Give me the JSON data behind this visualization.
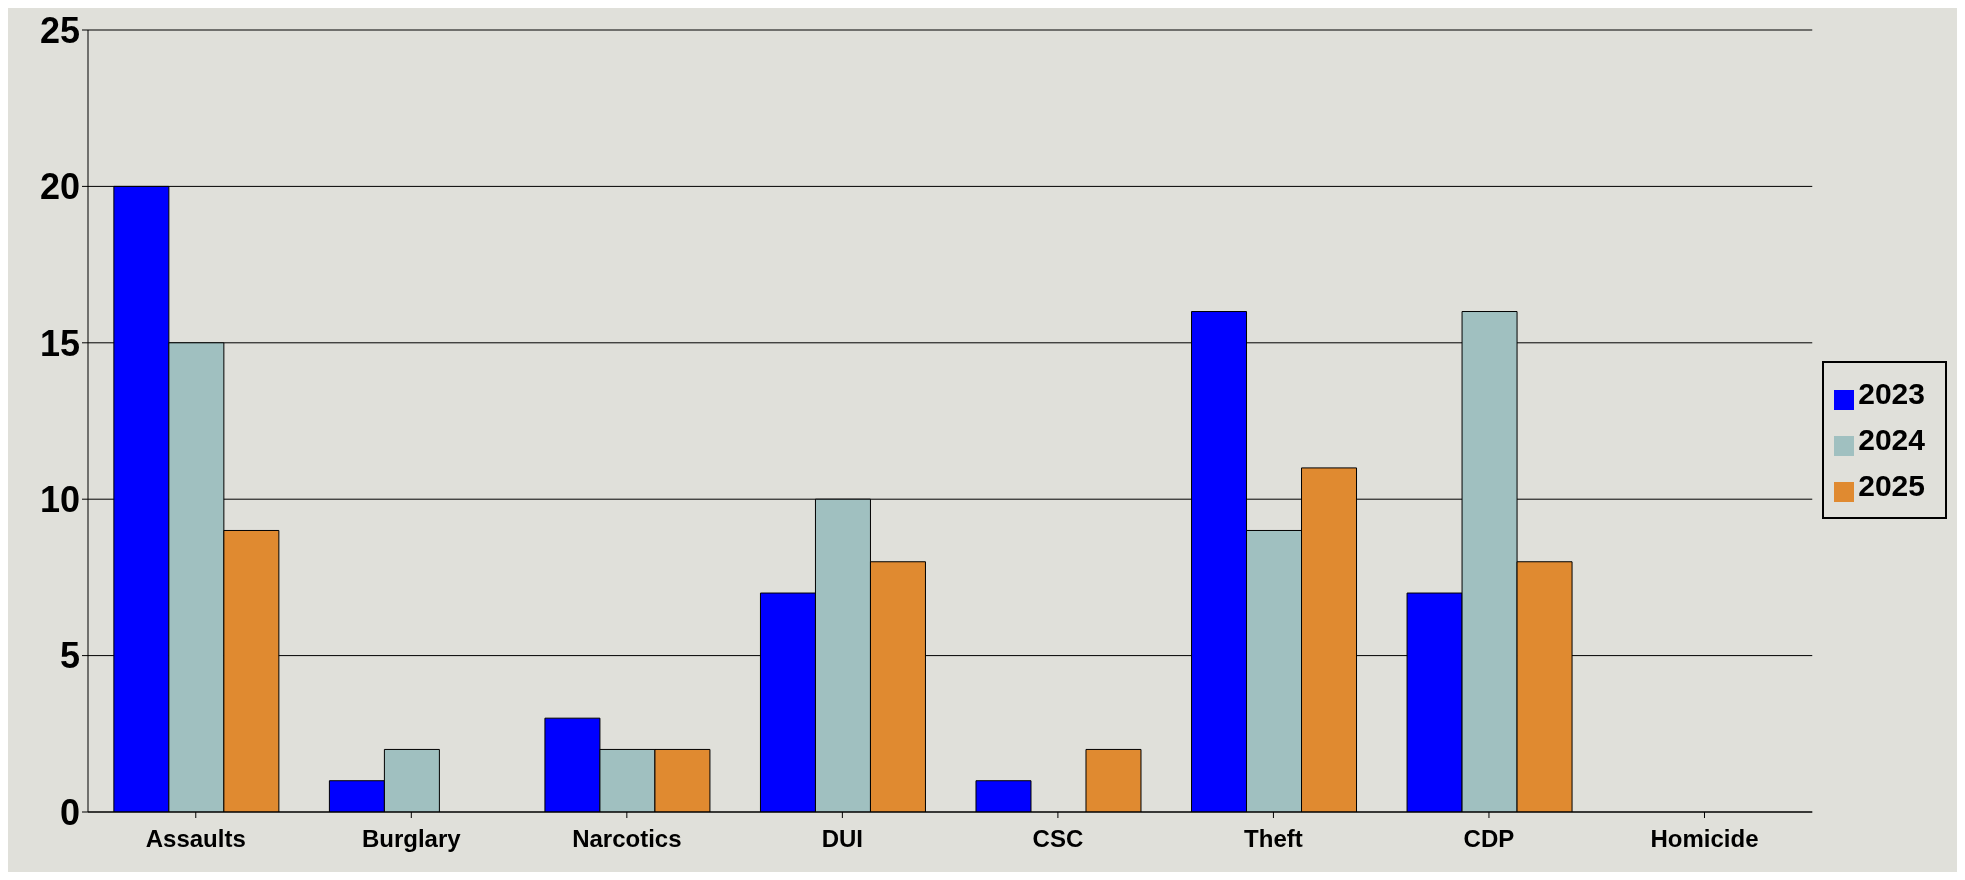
{
  "chart_data": {
    "type": "bar",
    "categories": [
      "Assaults",
      "Burglary",
      "Narcotics",
      "DUI",
      "CSC",
      "Theft",
      "CDP",
      "Homicide"
    ],
    "series": [
      {
        "name": "2023",
        "color": "#0000ff",
        "values": [
          20,
          1,
          3,
          7,
          1,
          16,
          7,
          0
        ]
      },
      {
        "name": "2024",
        "color": "#a0c0c0",
        "values": [
          15,
          2,
          2,
          10,
          0,
          9,
          16,
          0
        ]
      },
      {
        "name": "2025",
        "color": "#e08a30",
        "values": [
          9,
          0,
          2,
          8,
          2,
          11,
          8,
          0
        ]
      }
    ],
    "ylim": [
      0,
      25
    ],
    "yticks": [
      0,
      5,
      10,
      15,
      20,
      25
    ],
    "grid": "y",
    "legend": "right"
  }
}
